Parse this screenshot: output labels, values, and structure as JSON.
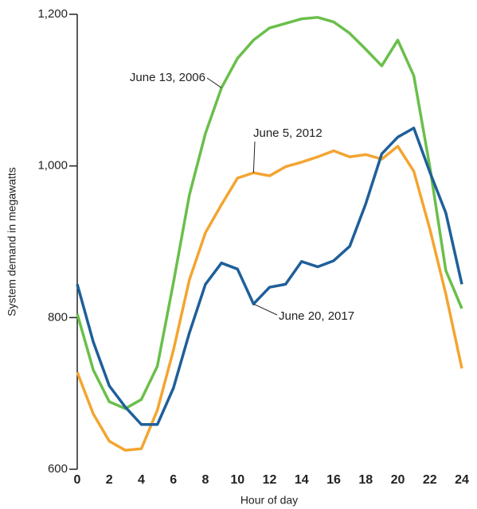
{
  "chart_data": {
    "type": "line",
    "x_label": "Hour of day",
    "y_label": "System demand in megawatts",
    "x": [
      0,
      1,
      2,
      3,
      4,
      5,
      6,
      7,
      8,
      9,
      10,
      11,
      12,
      13,
      14,
      15,
      16,
      17,
      18,
      19,
      20,
      21,
      22,
      23,
      24
    ],
    "series": [
      {
        "name": "June 13, 2006",
        "color": "#6abf4b",
        "values": [
          805,
          731,
          689,
          680,
          692,
          736,
          846,
          962,
          1043,
          1103,
          1142,
          1166,
          1182,
          1188,
          1194,
          1196,
          1190,
          1175,
          1154,
          1132,
          1166,
          1119,
          999,
          862,
          812
        ]
      },
      {
        "name": "June 5, 2012",
        "color": "#f3a531",
        "values": [
          728,
          673,
          637,
          625,
          627,
          678,
          757,
          850,
          912,
          949,
          984,
          991,
          987,
          999,
          1005,
          1012,
          1020,
          1012,
          1015,
          1009,
          1026,
          993,
          917,
          831,
          733
        ]
      },
      {
        "name": "June 20, 2017",
        "color": "#1f5f99",
        "values": [
          844,
          768,
          710,
          682,
          659,
          659,
          707,
          780,
          844,
          872,
          864,
          818,
          840,
          844,
          874,
          867,
          875,
          894,
          950,
          1016,
          1038,
          1050,
          992,
          938,
          844
        ]
      }
    ],
    "xlim": [
      0,
      24
    ],
    "xticks": [
      0,
      2,
      4,
      6,
      8,
      10,
      12,
      14,
      16,
      18,
      20,
      22,
      24
    ],
    "ylim": [
      600,
      1200
    ],
    "yticks": [
      600,
      800,
      {
        "value": 1000,
        "label": "1,000"
      },
      {
        "value": 1200,
        "label": "1,200"
      }
    ]
  }
}
